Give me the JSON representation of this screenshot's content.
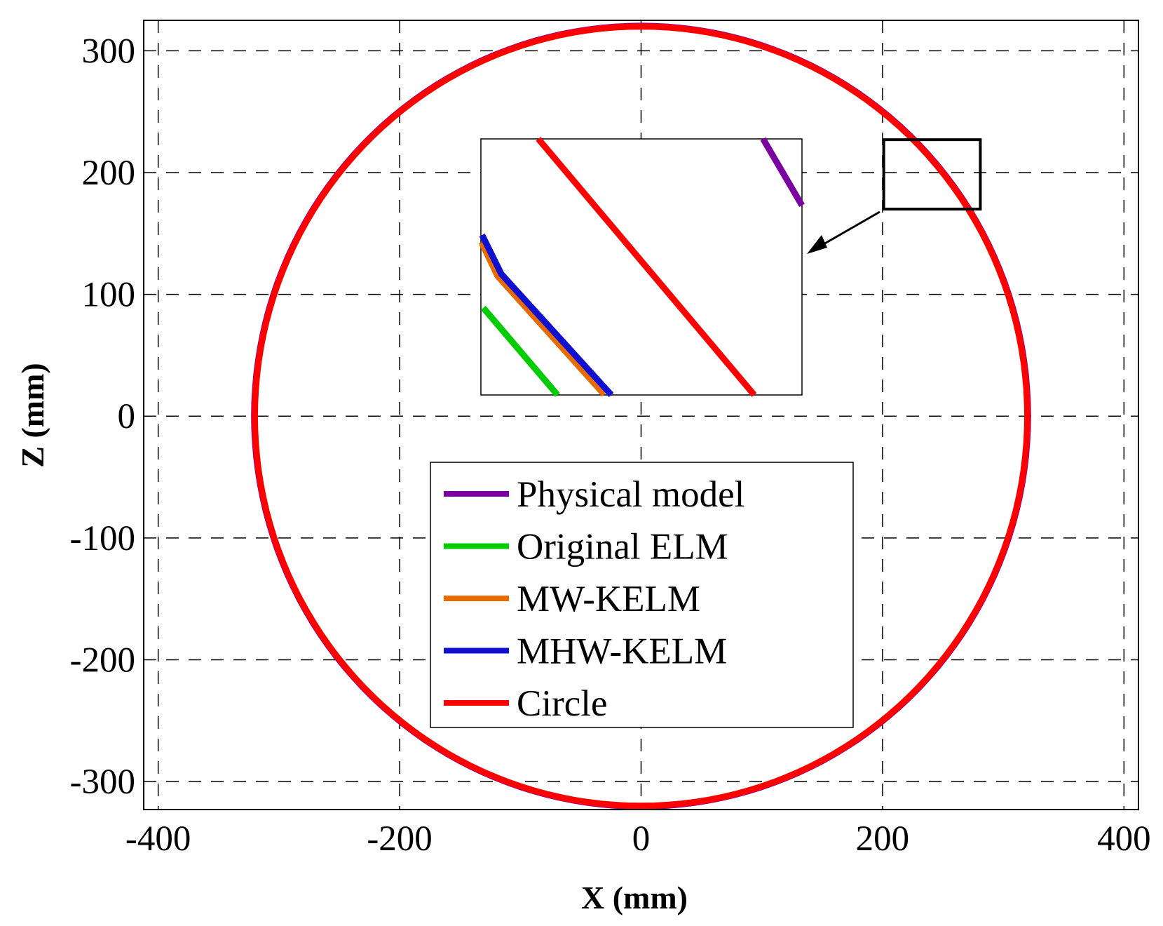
{
  "chart_data": {
    "type": "line",
    "title": "",
    "xlabel": "X (mm)",
    "ylabel": "Z (mm)",
    "xlim": [
      -412,
      412
    ],
    "ylim": [
      -323,
      325
    ],
    "xticks": [
      -400,
      -200,
      0,
      200,
      400
    ],
    "yticks": [
      -300,
      -200,
      -100,
      0,
      100,
      200,
      300
    ],
    "xtick_labels": [
      "-400",
      "-200",
      "0",
      "200",
      "400"
    ],
    "ytick_labels": [
      "-300",
      "-200",
      "-100",
      "0",
      "100",
      "200",
      "300"
    ],
    "grid": true,
    "legend_position": "center-bottom",
    "series": [
      {
        "name": "Physical model",
        "color": "#7a00a0",
        "center": [
          0,
          0
        ],
        "radius": 321
      },
      {
        "name": "Original ELM",
        "color": "#00cc00",
        "center": [
          0,
          0
        ],
        "radius": 319.5
      },
      {
        "name": "MW-KELM",
        "color": "#e86a00",
        "center": [
          0,
          0
        ],
        "radius": 320
      },
      {
        "name": "MHW-KELM",
        "color": "#1010d0",
        "center": [
          0,
          0
        ],
        "radius": 320.3
      },
      {
        "name": "Circle",
        "color": "#ff0000",
        "center": [
          0,
          0
        ],
        "radius": 320
      }
    ],
    "zoom_region": {
      "xlim": [
        201,
        281
      ],
      "ylim": [
        170,
        227
      ]
    },
    "inset": {
      "xlim": [
        201,
        281
      ],
      "ylim": [
        170,
        227
      ],
      "lines": [
        {
          "name": "Physical model",
          "points": [
            [
              271.3,
              227
            ],
            [
              281,
              212.2
            ]
          ]
        },
        {
          "name": "Original ELM",
          "points": [
            [
              201.6,
              189.4
            ],
            [
              220.1,
              170
            ]
          ]
        },
        {
          "name": "MW-KELM",
          "points": [
            [
              201,
              203.9
            ],
            [
              205,
              196.4
            ],
            [
              231.6,
              170
            ]
          ]
        },
        {
          "name": "MHW-KELM",
          "points": [
            [
              201.3,
              205.6
            ],
            [
              206.1,
              196.9
            ],
            [
              233.5,
              170
            ]
          ]
        },
        {
          "name": "Circle",
          "points": [
            [
              215.3,
              227
            ],
            [
              269.1,
              170
            ]
          ]
        }
      ]
    }
  }
}
